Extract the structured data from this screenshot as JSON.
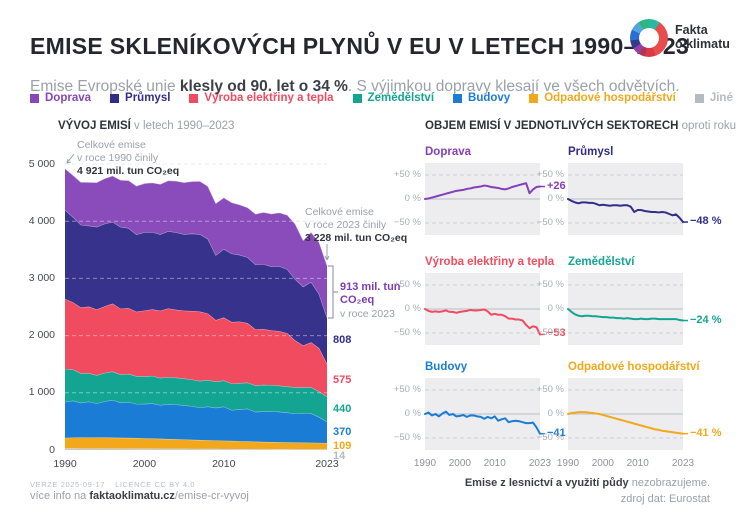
{
  "header": {
    "title": "EMISE SKLENÍKOVÝCH PLYNŮ V EU V LETECH 1990–2023",
    "logo": {
      "line1": "Fakta",
      "line2": "o klimatu"
    },
    "subtitle_pre": "Emise Evropské unie ",
    "subtitle_bold": "klesly od 90. let o 34 %",
    "subtitle_post": ". S výjimkou dopravy klesají ve všech odvětvích."
  },
  "legend": {
    "items": [
      {
        "label": "Doprava",
        "color": "#8747b8"
      },
      {
        "label": "Průmysl",
        "color": "#322e87"
      },
      {
        "label": "Výroba elektřiny a tepla",
        "color": "#f14b5f"
      },
      {
        "label": "Zemědělství",
        "color": "#14a592"
      },
      {
        "label": "Budovy",
        "color": "#1a7cd4"
      },
      {
        "label": "Odpadové hospodářství",
        "color": "#f3a81b"
      },
      {
        "label": "Jiné",
        "color": "#b4bac1"
      }
    ]
  },
  "left_chart": {
    "title_bold": "VÝVOJ EMISÍ",
    "title_rest": " v letech 1990–2023",
    "ann1990_l1": "Celkové emise",
    "ann1990_l2": "v roce 1990 činily",
    "ann1990_l3": "4 921 mil. tun CO₂eq",
    "ann2023_l1": "Celkové emise",
    "ann2023_l2": "v roce 2023 činily",
    "ann2023_l3": "3 228 mil. tun CO₂eq",
    "ann913_l1": "913 mil. tun",
    "ann913_l2": "CO₂eq",
    "ann913_l3": "v roce 2023"
  },
  "right_panel": {
    "title_bold": "OBJEM EMISÍ V JEDNOTLIVÝCH SEKTORECH",
    "title_rest": " oproti roku 1990"
  },
  "footer": {
    "version": "VERZE 2025-09-17",
    "license": "LICENCE CC BY 4.0",
    "info_pre": "více info na ",
    "info_bold": "faktaoklimatu.cz",
    "info_post": "/emise-cr-vyvoj",
    "footnote_bold": "Emise z lesnictví a využití půdy",
    "footnote_rest": " nezobrazujeme.",
    "source": "zdroj dat: Eurostat"
  },
  "chart_data": [
    {
      "type": "area",
      "stacked": true,
      "title": "VÝVOJ EMISÍ v letech 1990–2023",
      "unit": "mil. tun CO2eq",
      "total_1990": 4921,
      "total_2023": 3228,
      "ylim": [
        0,
        5000
      ],
      "ytick_values": [
        0,
        1000,
        2000,
        3000,
        4000,
        5000
      ],
      "ytick_labels": [
        "0",
        "1 000",
        "2 000",
        "3 000",
        "4 000",
        "5 000"
      ],
      "xtick_years": [
        1990,
        2000,
        2010,
        2023
      ],
      "xtick_labels": [
        "1990",
        "2000",
        "2010",
        "2023"
      ],
      "years": [
        1990,
        1991,
        1992,
        1993,
        1994,
        1995,
        1996,
        1997,
        1998,
        1999,
        2000,
        2001,
        2002,
        2003,
        2004,
        2005,
        2006,
        2007,
        2008,
        2009,
        2010,
        2011,
        2012,
        2013,
        2014,
        2015,
        2016,
        2017,
        2018,
        2019,
        2020,
        2021,
        2022,
        2023
      ],
      "series": [
        {
          "name": "Jiné",
          "color": "#c3c8cf",
          "label_color": "#b4bac1",
          "end_label": "14",
          "values": [
            28,
            28,
            27,
            27,
            26,
            26,
            25,
            25,
            24,
            24,
            23,
            23,
            22,
            22,
            21,
            21,
            20,
            20,
            19,
            19,
            18,
            18,
            17,
            17,
            16,
            16,
            15,
            15,
            15,
            14,
            14,
            14,
            14,
            14
          ]
        },
        {
          "name": "Odpadové hospodářství",
          "color": "#f3a81b",
          "label_color": "#f3a81b",
          "end_label": "109",
          "values": [
            185,
            189,
            191,
            192,
            192,
            192,
            191,
            189,
            187,
            185,
            181,
            178,
            174,
            170,
            167,
            163,
            159,
            155,
            152,
            148,
            144,
            141,
            137,
            133,
            130,
            126,
            124,
            120,
            118,
            117,
            115,
            113,
            111,
            109
          ]
        },
        {
          "name": "Budovy",
          "color": "#1a7cd4",
          "label_color": "#1a7cd4",
          "end_label": "370",
          "values": [
            627,
            646,
            608,
            627,
            596,
            633,
            658,
            614,
            627,
            596,
            602,
            614,
            589,
            608,
            608,
            596,
            589,
            564,
            589,
            571,
            596,
            539,
            558,
            571,
            520,
            533,
            539,
            533,
            520,
            508,
            508,
            514,
            451,
            370
          ]
        },
        {
          "name": "Zemědělství",
          "color": "#14a592",
          "label_color": "#14a592",
          "end_label": "440",
          "values": [
            579,
            544,
            515,
            498,
            492,
            498,
            498,
            492,
            492,
            486,
            481,
            481,
            475,
            475,
            469,
            469,
            463,
            469,
            463,
            457,
            457,
            463,
            457,
            457,
            463,
            463,
            457,
            457,
            457,
            457,
            457,
            457,
            446,
            440
          ]
        },
        {
          "name": "Výroba elektřiny a tepla",
          "color": "#f14b5f",
          "label_color": "#f14b5f",
          "end_label": "575",
          "values": [
            1223,
            1174,
            1150,
            1162,
            1150,
            1162,
            1186,
            1150,
            1150,
            1125,
            1150,
            1162,
            1174,
            1199,
            1186,
            1186,
            1199,
            1211,
            1162,
            1076,
            1101,
            1076,
            1076,
            1040,
            978,
            978,
            954,
            954,
            929,
            819,
            734,
            783,
            758,
            575
          ]
        },
        {
          "name": "Průmysl",
          "color": "#37328c",
          "label_color": "#322e87",
          "end_label": "808",
          "values": [
            1554,
            1492,
            1445,
            1414,
            1445,
            1445,
            1430,
            1430,
            1399,
            1352,
            1368,
            1352,
            1336,
            1352,
            1352,
            1336,
            1352,
            1352,
            1305,
            1134,
            1197,
            1197,
            1166,
            1150,
            1134,
            1134,
            1119,
            1134,
            1119,
            1072,
            1026,
            1057,
            948,
            808
          ]
        },
        {
          "name": "Doprava",
          "color": "#8a4cbb",
          "label_color": "#7d3cb5",
          "end_label": null,
          "values": [
            725,
            732,
            747,
            761,
            776,
            790,
            805,
            819,
            834,
            848,
            856,
            863,
            877,
            885,
            899,
            906,
            914,
            928,
            921,
            906,
            899,
            892,
            877,
            870,
            885,
            906,
            921,
            935,
            950,
            964,
            812,
            870,
            906,
            913
          ]
        }
      ]
    },
    {
      "type": "line",
      "title": "OBJEM EMISÍ V JEDNOTLIVÝCH SEKTORECH oproti roku 1990",
      "unit": "% vs 1990",
      "ylim": [
        -75,
        75
      ],
      "ytick_values": [
        50,
        0,
        -50
      ],
      "ytick_labels": [
        "+50 %",
        "0 %",
        "−50 %"
      ],
      "xtick_years": [
        1990,
        2000,
        2010,
        2023
      ],
      "xtick_labels": [
        "1990",
        "2000",
        "2010",
        "2023"
      ],
      "years": [
        1990,
        1991,
        1992,
        1993,
        1994,
        1995,
        1996,
        1997,
        1998,
        1999,
        2000,
        2001,
        2002,
        2003,
        2004,
        2005,
        2006,
        2007,
        2008,
        2009,
        2010,
        2011,
        2012,
        2013,
        2014,
        2015,
        2016,
        2017,
        2018,
        2019,
        2020,
        2021,
        2022,
        2023
      ],
      "series": [
        {
          "name": "Doprava",
          "color": "#8440b8",
          "end_label": "+26 %",
          "pct": [
            0,
            1,
            3,
            5,
            7,
            9,
            11,
            13,
            15,
            17,
            18,
            19,
            21,
            22,
            24,
            25,
            26,
            28,
            27,
            25,
            24,
            23,
            21,
            20,
            22,
            25,
            27,
            29,
            31,
            33,
            12,
            20,
            25,
            26
          ]
        },
        {
          "name": "Průmysl",
          "color": "#322e87",
          "end_label": "−48 %",
          "pct": [
            0,
            -4,
            -7,
            -9,
            -7,
            -7,
            -8,
            -8,
            -10,
            -13,
            -12,
            -13,
            -14,
            -13,
            -13,
            -14,
            -13,
            -13,
            -16,
            -27,
            -23,
            -23,
            -25,
            -26,
            -27,
            -27,
            -28,
            -27,
            -28,
            -31,
            -34,
            -32,
            -39,
            -48
          ]
        },
        {
          "name": "Výroba elektřiny a tepla",
          "color": "#f14b5f",
          "end_label": "−53 %",
          "pct": [
            0,
            -4,
            -6,
            -5,
            -6,
            -5,
            -3,
            -6,
            -6,
            -8,
            -6,
            -5,
            -4,
            -2,
            -3,
            -3,
            -2,
            -1,
            -5,
            -12,
            -10,
            -12,
            -12,
            -15,
            -20,
            -20,
            -22,
            -22,
            -24,
            -33,
            -40,
            -36,
            -38,
            -53
          ]
        },
        {
          "name": "Zemědělství",
          "color": "#14a592",
          "end_label": "−24 %",
          "pct": [
            0,
            -6,
            -11,
            -14,
            -15,
            -14,
            -14,
            -15,
            -15,
            -16,
            -17,
            -17,
            -18,
            -18,
            -19,
            -19,
            -20,
            -19,
            -20,
            -21,
            -21,
            -20,
            -21,
            -21,
            -20,
            -20,
            -21,
            -21,
            -21,
            -21,
            -21,
            -21,
            -23,
            -24
          ]
        },
        {
          "name": "Budovy",
          "color": "#1a7cd4",
          "end_label": "−41 %",
          "pct": [
            0,
            3,
            -3,
            0,
            -5,
            1,
            5,
            -2,
            0,
            -5,
            -4,
            -2,
            -6,
            -3,
            -3,
            -5,
            -6,
            -10,
            -6,
            -9,
            -5,
            -14,
            -11,
            -9,
            -17,
            -15,
            -14,
            -15,
            -17,
            -19,
            -19,
            -18,
            -28,
            -41
          ]
        },
        {
          "name": "Odpadové hospodářství",
          "color": "#f3a81b",
          "end_label": "−41 %",
          "pct": [
            0,
            2,
            3,
            4,
            4,
            4,
            3,
            2,
            1,
            0,
            -2,
            -4,
            -6,
            -8,
            -10,
            -12,
            -14,
            -16,
            -18,
            -20,
            -22,
            -24,
            -26,
            -28,
            -30,
            -32,
            -33,
            -35,
            -36,
            -37,
            -38,
            -39,
            -40,
            -41
          ]
        }
      ]
    }
  ]
}
